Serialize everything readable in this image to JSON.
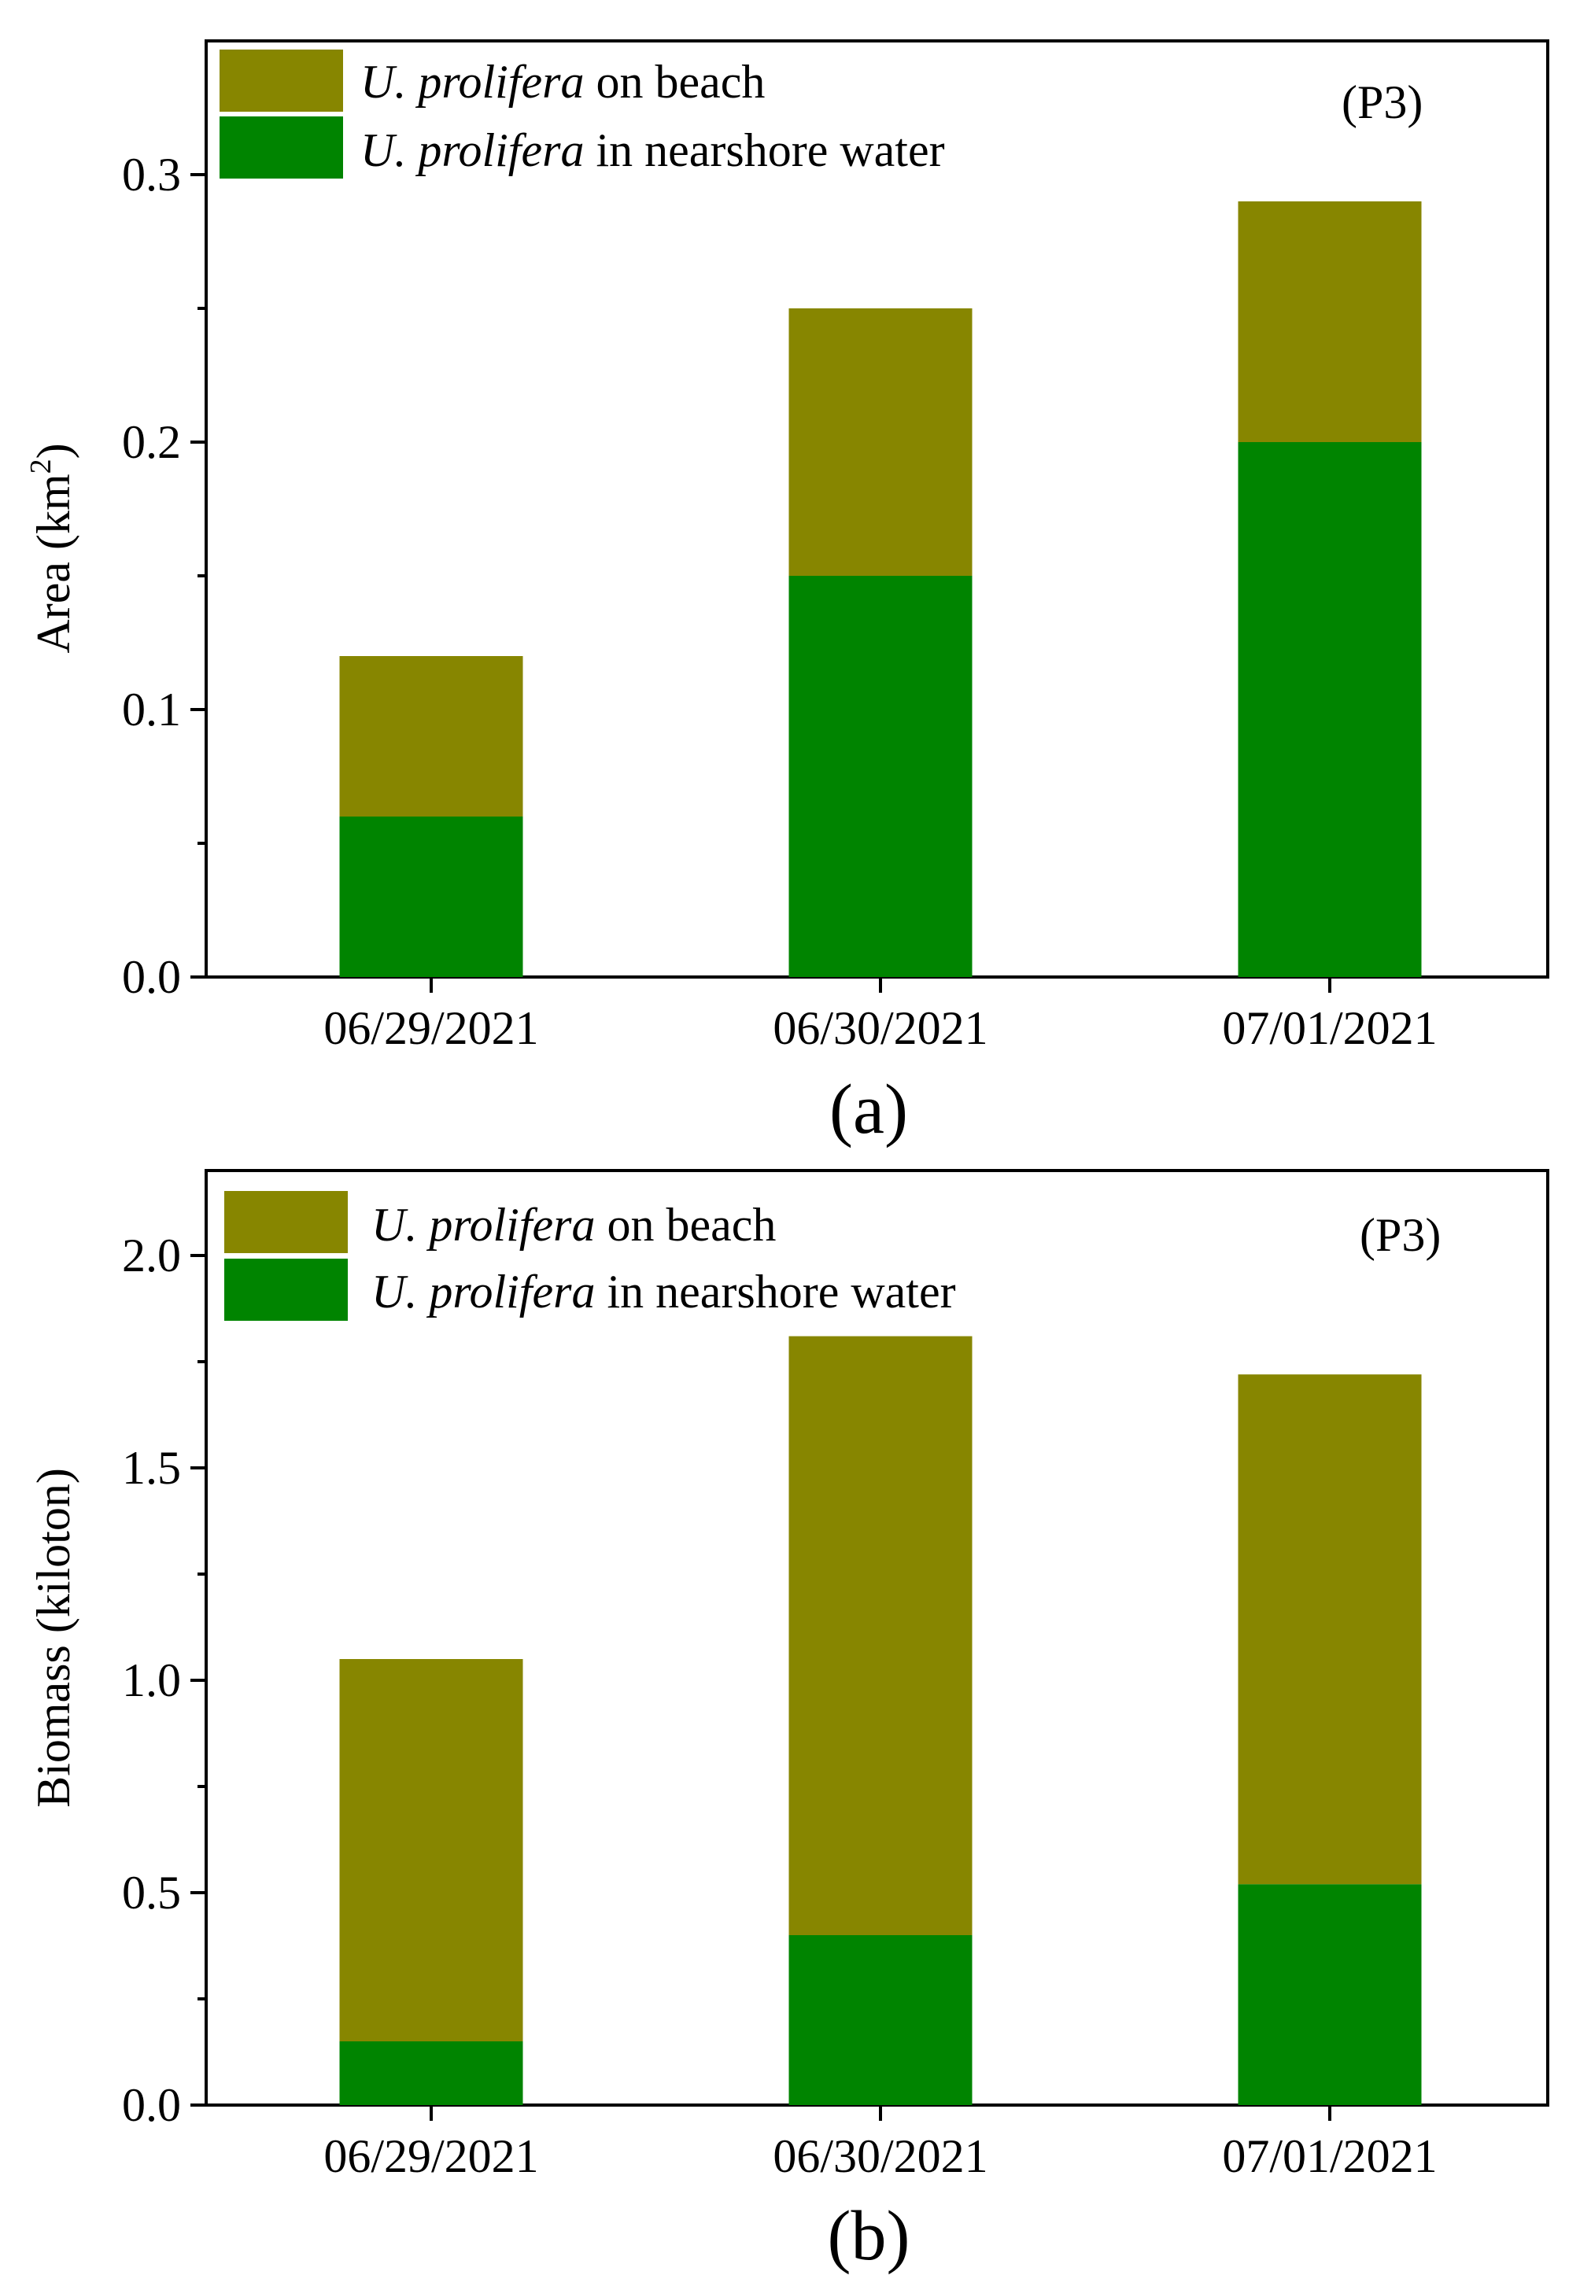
{
  "figure": {
    "colors": {
      "beach": "#878600",
      "water": "#008400",
      "axis": "#000000"
    }
  },
  "chart_data": [
    {
      "type": "bar",
      "stacked": true,
      "panel_label": "(a)",
      "site_label": "(P3)",
      "categories": [
        "06/29/2021",
        "06/30/2021",
        "07/01/2021"
      ],
      "series": [
        {
          "name": "U. prolifera in nearshore water",
          "name_italic": "U. prolifera",
          "name_rest": "in nearshore water",
          "values": [
            0.06,
            0.15,
            0.2
          ]
        },
        {
          "name": "U. prolifera on beach",
          "name_italic": "U. prolifera",
          "name_rest": "on beach",
          "values": [
            0.06,
            0.1,
            0.09
          ]
        }
      ],
      "ylabel_main": "Area (km",
      "ylabel_sup": "2",
      "ylabel_end": ")",
      "xlabel": "",
      "ylim": [
        0,
        0.35
      ],
      "yticks": [
        "0.0",
        "0.1",
        "0.2",
        "0.3"
      ],
      "legend_loc": "top-left"
    },
    {
      "type": "bar",
      "stacked": true,
      "panel_label": "(b)",
      "site_label": "(P3)",
      "categories": [
        "06/29/2021",
        "06/30/2021",
        "07/01/2021"
      ],
      "series": [
        {
          "name": "U. prolifera in nearshore water",
          "name_italic": "U. prolifera",
          "name_rest": "in nearshore water",
          "values": [
            0.15,
            0.4,
            0.52
          ]
        },
        {
          "name": "U. prolifera on beach",
          "name_italic": "U. prolifera",
          "name_rest": "on beach",
          "values": [
            0.9,
            1.41,
            1.2
          ]
        }
      ],
      "ylabel": "Biomass (kiloton)",
      "xlabel": "",
      "ylim": [
        0,
        2.2
      ],
      "yticks": [
        "0.0",
        "0.5",
        "1.0",
        "1.5",
        "2.0"
      ],
      "legend_loc": "top-left"
    }
  ]
}
